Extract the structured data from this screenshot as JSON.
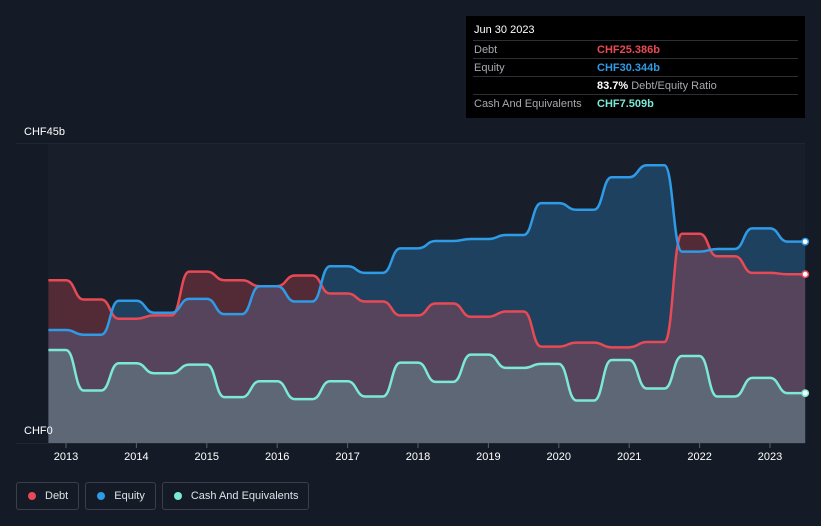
{
  "tooltip": {
    "date": "Jun 30 2023",
    "rows": [
      {
        "label": "Debt",
        "value": "CHF25.386b",
        "color": "#e84a55",
        "extra": ""
      },
      {
        "label": "Equity",
        "value": "CHF30.344b",
        "color": "#2f9ae6",
        "extra": ""
      },
      {
        "label": "",
        "value": "83.7%",
        "color": "#ffffff",
        "extra": "Debt/Equity Ratio"
      },
      {
        "label": "Cash And Equivalents",
        "value": "CHF7.509b",
        "color": "#7ce8d6",
        "extra": ""
      }
    ]
  },
  "legend": [
    {
      "label": "Debt",
      "color": "#e84a55"
    },
    {
      "label": "Equity",
      "color": "#2f9ae6"
    },
    {
      "label": "Cash And Equivalents",
      "color": "#7ce8d6"
    }
  ],
  "chart_data": {
    "type": "area",
    "ylabel_top": "CHF45b",
    "ylabel_bottom": "CHF0",
    "ylim": [
      0,
      45
    ],
    "xlim": [
      2012.75,
      2023.5
    ],
    "x_ticks": [
      "2013",
      "2014",
      "2015",
      "2016",
      "2017",
      "2018",
      "2019",
      "2020",
      "2021",
      "2022",
      "2023"
    ],
    "x": [
      2012.75,
      2013.0,
      2013.25,
      2013.5,
      2013.75,
      2014.0,
      2014.25,
      2014.5,
      2014.75,
      2015.0,
      2015.25,
      2015.5,
      2015.75,
      2016.0,
      2016.25,
      2016.5,
      2016.75,
      2017.0,
      2017.25,
      2017.5,
      2017.75,
      2018.0,
      2018.25,
      2018.5,
      2018.75,
      2019.0,
      2019.25,
      2019.5,
      2019.75,
      2020.0,
      2020.25,
      2020.5,
      2020.75,
      2021.0,
      2021.25,
      2021.5,
      2021.75,
      2022.0,
      2022.25,
      2022.5,
      2022.75,
      2023.0,
      2023.25,
      2023.5
    ],
    "series": [
      {
        "name": "Debt",
        "color": "#e84a55",
        "values": [
          24.5,
          24.5,
          21.6,
          21.6,
          18.7,
          18.7,
          19.2,
          19.2,
          25.8,
          25.8,
          24.5,
          24.5,
          23.6,
          23.6,
          25.2,
          25.2,
          22.5,
          22.5,
          21.3,
          21.3,
          19.2,
          19.2,
          21.0,
          21.0,
          19.0,
          19.0,
          19.8,
          19.8,
          14.5,
          14.5,
          15.1,
          15.1,
          14.4,
          14.4,
          15.2,
          15.2,
          31.5,
          31.5,
          28.1,
          28.1,
          25.6,
          25.6,
          25.4,
          25.4
        ]
      },
      {
        "name": "Equity",
        "color": "#2f9ae6",
        "values": [
          17.0,
          17.0,
          16.3,
          16.3,
          21.4,
          21.4,
          19.6,
          19.6,
          21.7,
          21.7,
          19.4,
          19.4,
          23.6,
          23.6,
          21.3,
          21.3,
          26.6,
          26.6,
          25.6,
          25.6,
          29.3,
          29.3,
          30.4,
          30.4,
          30.7,
          30.7,
          31.3,
          31.3,
          36.1,
          36.1,
          35.1,
          35.1,
          40.0,
          40.0,
          41.8,
          41.8,
          28.8,
          28.8,
          29.2,
          29.2,
          32.3,
          32.3,
          30.3,
          30.3
        ]
      },
      {
        "name": "Cash And Equivalents",
        "color": "#7ce8d6",
        "values": [
          14.0,
          14.0,
          7.9,
          7.9,
          12.0,
          12.0,
          10.5,
          10.5,
          11.8,
          11.8,
          6.9,
          6.9,
          9.3,
          9.3,
          6.6,
          6.6,
          9.3,
          9.3,
          7.0,
          7.0,
          12.1,
          12.1,
          9.2,
          9.2,
          13.3,
          13.3,
          11.3,
          11.3,
          11.9,
          11.9,
          6.4,
          6.4,
          12.5,
          12.5,
          8.2,
          8.2,
          13.1,
          13.1,
          7.0,
          7.0,
          9.8,
          9.8,
          7.5,
          7.5
        ]
      }
    ]
  }
}
